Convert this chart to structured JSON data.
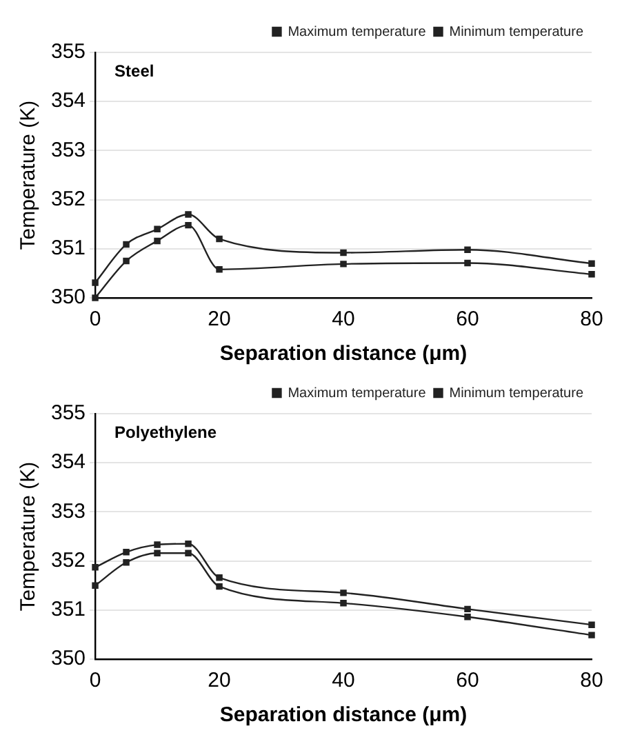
{
  "chart_data": [
    {
      "type": "line",
      "title": "Steel",
      "xlabel": "Separation distance (μm)",
      "ylabel": "Temperature (K)",
      "x": [
        0,
        5,
        10,
        15,
        20,
        40,
        60,
        80
      ],
      "series": [
        {
          "name": "Maximum temperature",
          "color": "#222222",
          "values": [
            350.31,
            351.09,
            351.4,
            351.7,
            351.2,
            350.92,
            350.98,
            350.7
          ]
        },
        {
          "name": "Minimum temperature",
          "color": "#222222",
          "values": [
            350.0,
            350.75,
            351.16,
            351.48,
            350.58,
            350.69,
            350.71,
            350.48
          ]
        }
      ],
      "xlim": [
        0,
        80
      ],
      "xticks": [
        0,
        20,
        40,
        60,
        80
      ],
      "ylim": [
        350,
        355
      ],
      "yticks": [
        350,
        351,
        352,
        353,
        354,
        355
      ],
      "grid": "y",
      "legend": "top right",
      "marker": "square",
      "line_style": "solid"
    },
    {
      "type": "line",
      "title": "Polyethylene",
      "xlabel": "Separation distance (μm)",
      "ylabel": "Temperature (K)",
      "x": [
        0,
        5,
        10,
        15,
        20,
        40,
        60,
        80
      ],
      "series": [
        {
          "name": "Maximum temperature",
          "color": "#222222",
          "values": [
            351.87,
            352.18,
            352.33,
            352.35,
            351.66,
            351.35,
            351.02,
            350.7
          ]
        },
        {
          "name": "Minimum temperature",
          "color": "#222222",
          "values": [
            351.5,
            351.97,
            352.16,
            352.16,
            351.48,
            351.14,
            350.86,
            350.49
          ]
        }
      ],
      "xlim": [
        0,
        80
      ],
      "xticks": [
        0,
        20,
        40,
        60,
        80
      ],
      "ylim": [
        350,
        355
      ],
      "yticks": [
        350,
        351,
        352,
        353,
        354,
        355
      ],
      "grid": "y",
      "legend": "top right",
      "marker": "square",
      "line_style": "solid"
    }
  ]
}
